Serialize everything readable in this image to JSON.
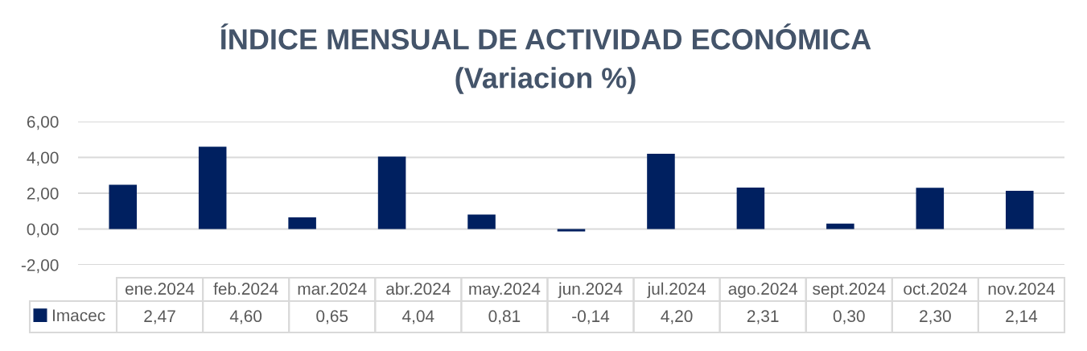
{
  "chart_data": {
    "type": "bar",
    "title": "ÍNDICE MENSUAL DE ACTIVIDAD ECONÓMICA",
    "subtitle": "(Variacion %)",
    "categories": [
      "ene.2024",
      "feb.2024",
      "mar.2024",
      "abr.2024",
      "may.2024",
      "jun.2024",
      "jul.2024",
      "ago.2024",
      "sept.2024",
      "oct.2024",
      "nov.2024"
    ],
    "series": [
      {
        "name": "Imacec",
        "color": "#002060",
        "values": [
          2.47,
          4.6,
          0.65,
          4.04,
          0.81,
          -0.14,
          4.2,
          2.31,
          0.3,
          2.3,
          2.14
        ],
        "value_labels": [
          "2,47",
          "4,60",
          "0,65",
          "4,04",
          "0,81",
          "-0,14",
          "4,20",
          "2,31",
          "0,30",
          "2,30",
          "2,14"
        ]
      }
    ],
    "ylim": [
      -2,
      6
    ],
    "yticks": [
      {
        "value": -2,
        "label": "-2,00"
      },
      {
        "value": 0,
        "label": "0,00"
      },
      {
        "value": 2,
        "label": "2,00"
      },
      {
        "value": 4,
        "label": "4,00"
      },
      {
        "value": 6,
        "label": "6,00"
      }
    ],
    "grid": "y",
    "legend": "bottom"
  }
}
